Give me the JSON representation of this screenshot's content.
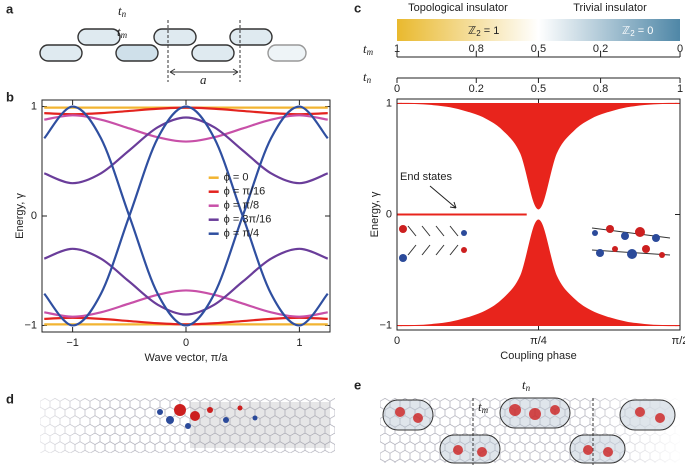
{
  "panel_labels": [
    "a",
    "b",
    "c",
    "d",
    "e"
  ],
  "panel_a": {
    "t_n": {
      "symbol": "t",
      "sub": "n"
    },
    "t_m": {
      "symbol": "t",
      "sub": "m"
    },
    "period": "a"
  },
  "panel_e": {
    "t_n": {
      "symbol": "t",
      "sub": "n"
    },
    "t_m": {
      "symbol": "t",
      "sub": "m"
    }
  },
  "chart_data": [
    {
      "type": "line",
      "ylabel": "Energy, γ",
      "xlabel": "Wave vector, π/a",
      "xlim": [
        -1.27,
        1.27
      ],
      "ylim": [
        -1.06,
        1.06
      ],
      "xticks": [
        {
          "value": -1,
          "label": "−1"
        },
        0,
        1
      ],
      "yticks": [
        {
          "value": -1,
          "label": "−1"
        },
        0,
        1
      ],
      "legend": "center right",
      "x": [
        -1.25,
        -1,
        -0.75,
        -0.5,
        -0.25,
        0,
        0.25,
        0.5,
        0.75,
        1,
        1.25
      ],
      "series": [
        {
          "name": "ϕ = 0",
          "color": "#f2b431",
          "curves": [
            [
              0.99,
              0.99,
              0.99,
              0.99,
              0.99,
              0.99,
              0.99,
              0.99,
              0.99,
              0.99,
              0.99
            ],
            [
              -0.99,
              -0.99,
              -0.99,
              -0.99,
              -0.99,
              -0.99,
              -0.99,
              -0.99,
              -0.99,
              -0.99,
              -0.99
            ]
          ]
        },
        {
          "name": "ϕ = π/16",
          "color": "#e3231f",
          "curves": [
            [
              0.94,
              0.93,
              0.94,
              0.96,
              0.98,
              0.99,
              0.98,
              0.96,
              0.94,
              0.93,
              0.94
            ],
            [
              -0.94,
              -0.93,
              -0.94,
              -0.96,
              -0.98,
              -0.99,
              -0.98,
              -0.96,
              -0.94,
              -0.93,
              -0.94
            ]
          ]
        },
        {
          "name": "ϕ = π/8",
          "color": "#c850a8",
          "curves": [
            [
              0.88,
              0.92,
              0.88,
              0.8,
              0.72,
              0.68,
              0.72,
              0.8,
              0.88,
              0.92,
              0.88
            ],
            [
              -0.88,
              -0.92,
              -0.88,
              -0.8,
              -0.72,
              -0.68,
              -0.72,
              -0.8,
              -0.88,
              -0.92,
              -0.88
            ]
          ]
        },
        {
          "name": "ϕ = 3π/16",
          "color": "#6a3d9a",
          "curves": [
            [
              0.39,
              0.3,
              0.39,
              0.6,
              0.81,
              0.9,
              0.81,
              0.6,
              0.39,
              0.3,
              0.39
            ],
            [
              -0.39,
              -0.3,
              -0.39,
              -0.6,
              -0.81,
              -0.9,
              -0.81,
              -0.6,
              -0.39,
              -0.3,
              -0.39
            ]
          ]
        },
        {
          "name": "ϕ = π/4",
          "color": "#2f4fa0",
          "curves": [
            [
              -0.71,
              -1,
              -0.71,
              0,
              0.71,
              1,
              0.71,
              0,
              -0.71,
              -1,
              -0.71
            ],
            [
              0.71,
              1,
              0.71,
              0,
              -0.71,
              -1,
              -0.71,
              0,
              0.71,
              1,
              0.71
            ]
          ]
        }
      ]
    },
    {
      "type": "band",
      "ylabel": "Energy, γ",
      "xlabel": "Coupling phase",
      "annotation": "End states",
      "xlim": [
        0,
        1.5708
      ],
      "ylim": [
        -1.04,
        1.04
      ],
      "xticks": [
        0,
        {
          "value": 0.7854,
          "label": "π/4"
        },
        {
          "value": 1.5708,
          "label": "π/2"
        }
      ],
      "yticks": [
        {
          "value": -1,
          "label": "−1"
        },
        0,
        1
      ],
      "x": [
        0,
        0.098,
        0.196,
        0.295,
        0.393,
        0.491,
        0.589,
        0.687,
        0.785,
        0.884,
        0.982,
        1.08,
        1.178,
        1.276,
        1.374,
        1.473,
        1.571
      ],
      "series": [
        {
          "color": "#e8241c",
          "upper": [
            1,
            1,
            1,
            1,
            1,
            1,
            1,
            1,
            1,
            1,
            1,
            1,
            1,
            1,
            1,
            1,
            1
          ],
          "lower": [
            1,
            1,
            0.99,
            0.97,
            0.93,
            0.87,
            0.76,
            0.55,
            0.05,
            0.55,
            0.76,
            0.87,
            0.93,
            0.97,
            0.99,
            1,
            1
          ]
        },
        {
          "color": "#e8241c",
          "upper": [
            -1,
            -1,
            -0.99,
            -0.97,
            -0.93,
            -0.87,
            -0.76,
            -0.55,
            -0.05,
            -0.55,
            -0.76,
            -0.87,
            -0.93,
            -0.97,
            -0.99,
            -1,
            -1
          ],
          "lower": [
            -1,
            -1,
            -1,
            -1,
            -1,
            -1,
            -1,
            -1,
            -1,
            -1,
            -1,
            -1,
            -1,
            -1,
            -1,
            -1,
            -1
          ]
        }
      ],
      "end_states": {
        "color": "#e8241c",
        "x": [
          0,
          0.72
        ],
        "values": [
          0,
          0
        ]
      },
      "phase_bar": {
        "left": "Topological insulator",
        "right": "Trivial insulator",
        "left_inv": {
          "symbol": "ℤ",
          "sub": "2",
          "rest": " = 1"
        },
        "right_inv": {
          "symbol": "ℤ",
          "sub": "2",
          "rest": " = 0"
        }
      },
      "scales": [
        {
          "symbol": "t",
          "sub": "m",
          "ticks": [
            {
              "value": 0,
              "label": "1"
            },
            {
              "value": 0.44,
              "label": "0.8"
            },
            {
              "value": 0.785,
              "label": "0.5"
            },
            {
              "value": 1.13,
              "label": "0.2"
            },
            {
              "value": 1.571,
              "label": "0"
            }
          ]
        },
        {
          "symbol": "t",
          "sub": "n",
          "ticks": [
            {
              "value": 0,
              "label": "0"
            },
            {
              "value": 0.44,
              "label": "0.2"
            },
            {
              "value": 0.785,
              "label": "0.5"
            },
            {
              "value": 1.13,
              "label": "0.8"
            },
            {
              "value": 1.571,
              "label": "1"
            }
          ]
        }
      ]
    }
  ]
}
